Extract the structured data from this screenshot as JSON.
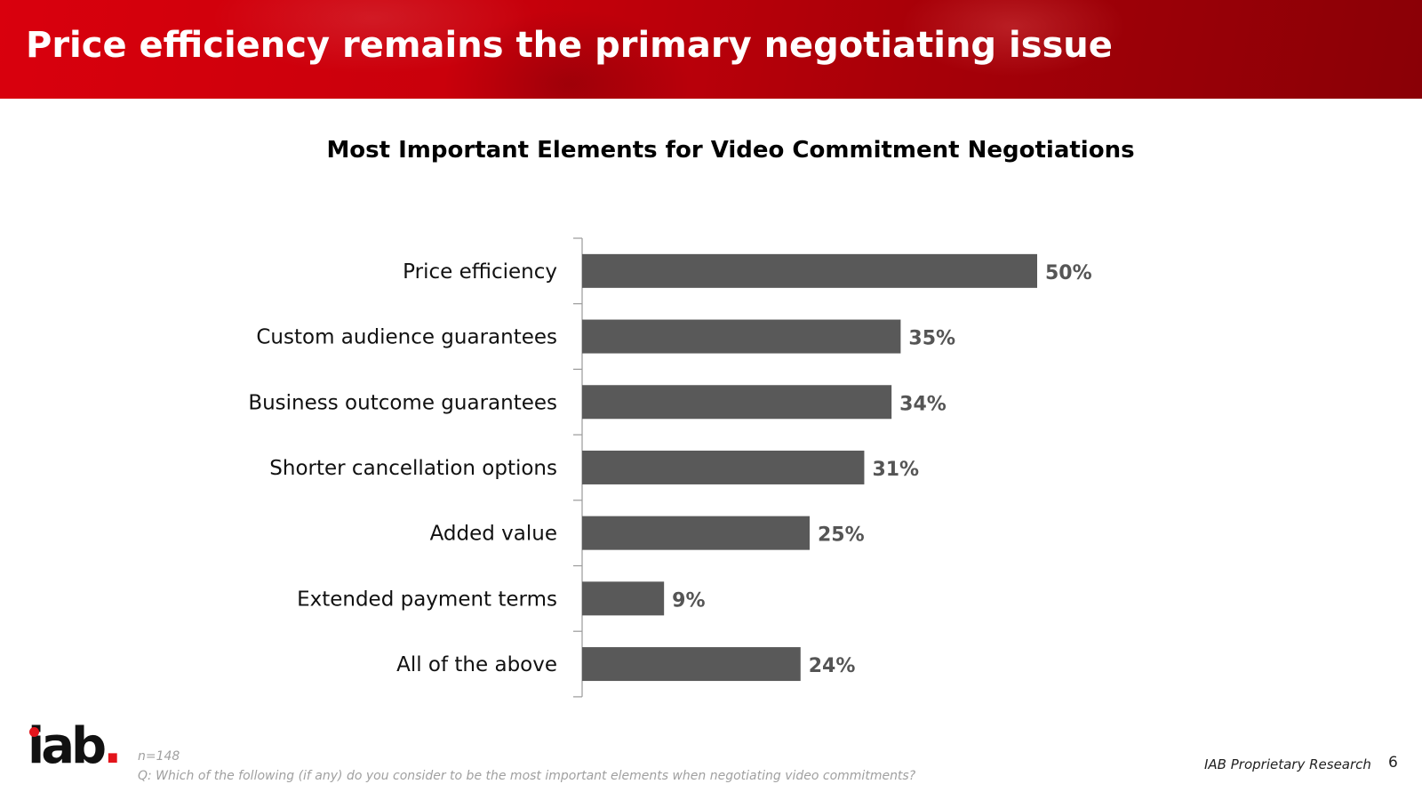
{
  "slide": {
    "title": "Price efficiency remains the primary negotiating issue",
    "sample_note": "n=148",
    "question_note": "Q: Which of the following (if any) do you consider to be the most important elements when negotiating video commitments?",
    "source": "IAB Proprietary Research",
    "page_number": "6",
    "logo_text": "iab",
    "logo_dot": ".",
    "accent_color": "#d9000d",
    "bar_color": "#595959"
  },
  "chart_data": {
    "type": "bar",
    "orientation": "horizontal",
    "title": "Most Important Elements for Video Commitment Negotiations",
    "categories": [
      "Price efficiency",
      "Custom audience guarantees",
      "Business outcome guarantees",
      "Shorter cancellation options",
      "Added value",
      "Extended payment terms",
      "All of the above"
    ],
    "values": [
      50,
      35,
      34,
      31,
      25,
      9,
      24
    ],
    "value_labels": [
      "50%",
      "35%",
      "34%",
      "31%",
      "25%",
      "9%",
      "24%"
    ],
    "unit": "%",
    "xlim": [
      0,
      50
    ],
    "grid": false,
    "legend": "none"
  }
}
